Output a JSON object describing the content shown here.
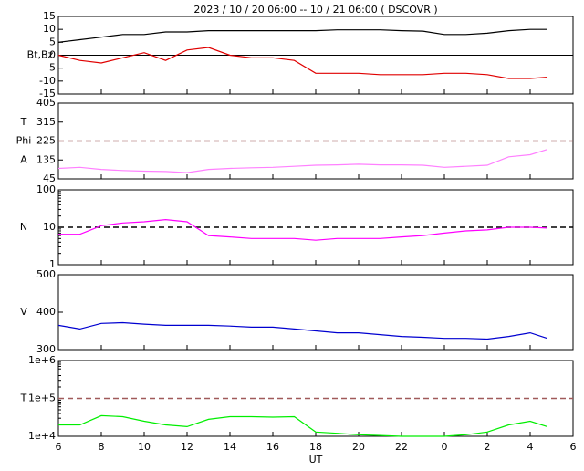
{
  "title": "2023 / 10 / 20   06:00 -- 10 / 21   06:00 ( DSCOVR )",
  "x_axis": {
    "label": "UT",
    "xlim": [
      6,
      30
    ],
    "xticks": [
      6,
      8,
      10,
      12,
      14,
      16,
      18,
      20,
      22,
      {
        "value": 24,
        "label": "0"
      },
      {
        "value": 26,
        "label": "2"
      },
      {
        "value": 28,
        "label": "4"
      },
      {
        "value": 30,
        "label": "6"
      }
    ]
  },
  "x": [
    6,
    7,
    8,
    9,
    10,
    11,
    12,
    13,
    14,
    15,
    16,
    17,
    18,
    19,
    20,
    21,
    22,
    23,
    24,
    25,
    26,
    27,
    28,
    28.8
  ],
  "chart_data": [
    {
      "type": "line",
      "ylabels": [
        "Bt,Bz"
      ],
      "ylim": [
        -15,
        15
      ],
      "yticks": [
        -15,
        -10,
        -5,
        0,
        5,
        10,
        15
      ],
      "reference_line": {
        "value": 0,
        "color": "#000000",
        "dashed": false
      },
      "series": [
        {
          "name": "Bt",
          "color": "#000000",
          "values": [
            5,
            6,
            7,
            8,
            8,
            9,
            9,
            9.5,
            9.5,
            9.5,
            9.5,
            9.5,
            9.5,
            9.8,
            9.8,
            9.8,
            9.5,
            9.3,
            8,
            8,
            8.5,
            9.5,
            10,
            10
          ]
        },
        {
          "name": "Bz",
          "color": "#e00000",
          "values": [
            0,
            -2,
            -3,
            -1,
            1,
            -2,
            2,
            3,
            0,
            -1,
            -1,
            -2,
            -7,
            -7,
            -7,
            -7.5,
            -7.5,
            -7.5,
            -7,
            -7,
            -7.5,
            -9,
            -9,
            -8.5
          ]
        }
      ]
    },
    {
      "type": "line",
      "ylabels": [
        "T",
        "Phi",
        "A"
      ],
      "ylim": [
        45,
        405
      ],
      "yticks": [
        45,
        135,
        225,
        315,
        405
      ],
      "reference_line": {
        "value": 225,
        "color": "#a05a5a",
        "dashed": true
      },
      "series": [
        {
          "name": "Phi",
          "color": "#ff80ff",
          "values": [
            95,
            100,
            90,
            85,
            82,
            80,
            75,
            90,
            95,
            98,
            100,
            105,
            110,
            112,
            115,
            112,
            112,
            110,
            100,
            105,
            110,
            150,
            160,
            185
          ]
        }
      ]
    },
    {
      "type": "line",
      "ylabels": [
        "N"
      ],
      "log": true,
      "ylim": [
        1,
        100
      ],
      "yticks": [
        1,
        10,
        100
      ],
      "reference_line": {
        "value": 10,
        "color": "#000000",
        "dashed": true
      },
      "series": [
        {
          "name": "N",
          "color": "#ff00ff",
          "values": [
            6.5,
            6.5,
            11,
            13,
            14,
            16,
            14,
            6,
            5.5,
            5,
            5,
            5,
            4.5,
            5,
            5,
            5,
            5.5,
            6,
            7,
            8,
            8.5,
            10,
            10,
            9.5
          ]
        }
      ]
    },
    {
      "type": "line",
      "ylabels": [
        "V"
      ],
      "ylim": [
        300,
        500
      ],
      "yticks": [
        300,
        400,
        500
      ],
      "series": [
        {
          "name": "V",
          "color": "#0000d0",
          "values": [
            365,
            355,
            370,
            372,
            368,
            365,
            365,
            365,
            363,
            360,
            360,
            355,
            350,
            345,
            345,
            340,
            335,
            333,
            330,
            330,
            328,
            335,
            345,
            330
          ]
        }
      ]
    },
    {
      "type": "line",
      "ylabels": [
        "T"
      ],
      "log": true,
      "ylim": [
        10000,
        1000000
      ],
      "yticks": [
        {
          "value": 10000,
          "label": "1e+4"
        },
        {
          "value": 100000,
          "label": "1e+5"
        },
        {
          "value": 1000000,
          "label": "1e+6"
        }
      ],
      "reference_line": {
        "value": 100000,
        "color": "#a05a5a",
        "dashed": true
      },
      "series": [
        {
          "name": "T",
          "color": "#00ee00",
          "values": [
            20000,
            20000,
            35000,
            33000,
            25000,
            20000,
            18000,
            28000,
            33000,
            33000,
            32000,
            33000,
            13000,
            12000,
            11000,
            10500,
            10000,
            10000,
            10000,
            11000,
            13000,
            20000,
            25000,
            18000
          ]
        }
      ]
    }
  ]
}
